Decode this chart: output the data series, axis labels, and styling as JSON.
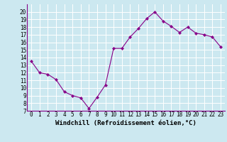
{
  "x": [
    0,
    1,
    2,
    3,
    4,
    5,
    6,
    7,
    8,
    9,
    10,
    11,
    12,
    13,
    14,
    15,
    16,
    17,
    18,
    19,
    20,
    21,
    22,
    23
  ],
  "y": [
    13.5,
    12.0,
    11.8,
    11.1,
    9.5,
    9.0,
    8.7,
    7.3,
    8.8,
    10.4,
    15.2,
    15.2,
    16.7,
    17.8,
    19.1,
    20.0,
    18.8,
    18.1,
    17.3,
    18.0,
    17.2,
    17.0,
    16.7,
    15.4
  ],
  "x_labels": [
    "0",
    "1",
    "2",
    "3",
    "4",
    "5",
    "6",
    "7",
    "8",
    "9",
    "10",
    "11",
    "12",
    "13",
    "14",
    "15",
    "16",
    "17",
    "18",
    "19",
    "20",
    "21",
    "22",
    "23"
  ],
  "xlabel": "Windchill (Refroidissement éolien,°C)",
  "ylim": [
    7,
    21
  ],
  "yticks": [
    7,
    8,
    9,
    10,
    11,
    12,
    13,
    14,
    15,
    16,
    17,
    18,
    19,
    20
  ],
  "line_color": "#880088",
  "marker_color": "#880088",
  "bg_color": "#cce8f0",
  "grid_color": "#ffffff",
  "xlabel_fontsize": 6.5,
  "tick_fontsize": 5.5
}
